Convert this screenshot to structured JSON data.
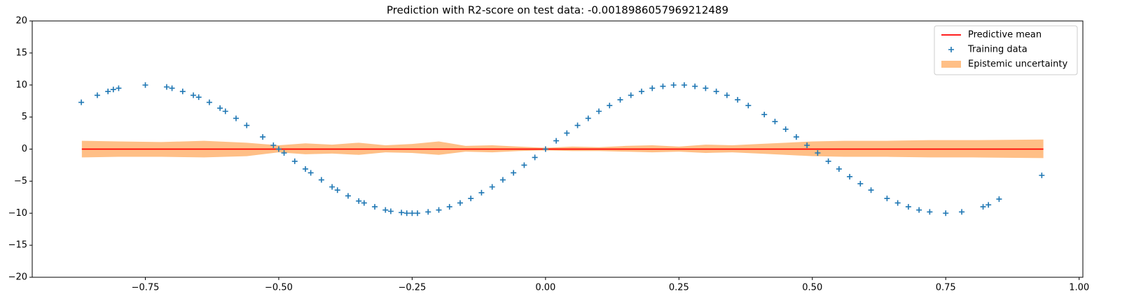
{
  "chart_data": {
    "type": "line",
    "title": "Prediction with R2-score on test data: -0.0018986057969212489",
    "xlim": [
      -0.962,
      1.007
    ],
    "ylim": [
      -20,
      20
    ],
    "xticks": [
      {
        "value": -0.75,
        "label": "−0.75"
      },
      {
        "value": -0.5,
        "label": "−0.50"
      },
      {
        "value": -0.25,
        "label": "−0.25"
      },
      {
        "value": 0,
        "label": "0.00"
      },
      {
        "value": 0.25,
        "label": "0.25"
      },
      {
        "value": 0.5,
        "label": "0.50"
      },
      {
        "value": 0.75,
        "label": "0.75"
      },
      {
        "value": 1,
        "label": "1.00"
      }
    ],
    "yticks": [
      {
        "value": -20,
        "label": "−20"
      },
      {
        "value": -15,
        "label": "−15"
      },
      {
        "value": -10,
        "label": "−10"
      },
      {
        "value": -5,
        "label": "−5"
      },
      0,
      5,
      10,
      15,
      20
    ],
    "legend": "upper right",
    "series": [
      {
        "name": "Predictive mean",
        "type": "line",
        "color": "#ff0000",
        "x": [
          -0.869,
          0.933
        ],
        "values": [
          0,
          0
        ]
      },
      {
        "name": "Training data",
        "type": "scatter",
        "color": "#1f77b4",
        "x": [
          -0.87,
          -0.84,
          -0.82,
          -0.81,
          -0.8,
          -0.75,
          -0.71,
          -0.7,
          -0.68,
          -0.66,
          -0.65,
          -0.63,
          -0.61,
          -0.6,
          -0.58,
          -0.56,
          -0.53,
          -0.51,
          -0.5,
          -0.49,
          -0.47,
          -0.45,
          -0.44,
          -0.42,
          -0.4,
          -0.39,
          -0.37,
          -0.35,
          -0.34,
          -0.32,
          -0.3,
          -0.29,
          -0.27,
          -0.26,
          -0.25,
          -0.24,
          -0.22,
          -0.2,
          -0.18,
          -0.16,
          -0.14,
          -0.12,
          -0.1,
          -0.08,
          -0.06,
          -0.04,
          -0.02,
          0,
          0.02,
          0.04,
          0.06,
          0.08,
          0.1,
          0.12,
          0.14,
          0.16,
          0.18,
          0.2,
          0.22,
          0.24,
          0.26,
          0.28,
          0.3,
          0.32,
          0.34,
          0.36,
          0.38,
          0.41,
          0.43,
          0.45,
          0.47,
          0.49,
          0.51,
          0.53,
          0.55,
          0.57,
          0.59,
          0.61,
          0.64,
          0.66,
          0.68,
          0.7,
          0.72,
          0.75,
          0.78,
          0.82,
          0.83,
          0.85,
          0.93
        ],
        "values": [
          7.3,
          8.4,
          9.0,
          9.3,
          9.5,
          10,
          9.7,
          9.5,
          9.0,
          8.4,
          8.1,
          7.3,
          6.4,
          5.9,
          4.8,
          3.7,
          1.9,
          0.6,
          0,
          -0.6,
          -1.9,
          -3.1,
          -3.7,
          -4.8,
          -5.9,
          -6.4,
          -7.3,
          -8.1,
          -8.4,
          -9.0,
          -9.5,
          -9.7,
          -9.9,
          -10,
          -10,
          -10,
          -9.8,
          -9.5,
          -9.0,
          -8.4,
          -7.7,
          -6.8,
          -5.9,
          -4.8,
          -3.7,
          -2.5,
          -1.3,
          0,
          1.3,
          2.5,
          3.7,
          4.8,
          5.9,
          6.8,
          7.7,
          8.4,
          9.0,
          9.5,
          9.8,
          10,
          10,
          9.8,
          9.5,
          9.0,
          8.4,
          7.7,
          6.8,
          5.4,
          4.3,
          3.1,
          1.9,
          0.6,
          -0.6,
          -1.9,
          -3.1,
          -4.3,
          -5.4,
          -6.4,
          -7.7,
          -8.4,
          -9.0,
          -9.5,
          -9.8,
          -10,
          -9.8,
          -9.0,
          -8.7,
          -7.8,
          -4.1
        ]
      },
      {
        "name": "Epistemic uncertainty",
        "type": "band",
        "color": "#ffbf86",
        "x": [
          -0.869,
          -0.8,
          -0.72,
          -0.64,
          -0.56,
          -0.5,
          -0.45,
          -0.4,
          -0.35,
          -0.3,
          -0.25,
          -0.2,
          -0.15,
          -0.1,
          -0.05,
          0,
          0.05,
          0.1,
          0.15,
          0.2,
          0.25,
          0.3,
          0.35,
          0.4,
          0.45,
          0.5,
          0.56,
          0.64,
          0.72,
          0.8,
          0.933
        ],
        "upper": [
          1.3,
          1.2,
          1.1,
          1.3,
          1.0,
          0.6,
          0.9,
          0.7,
          1.0,
          0.6,
          0.8,
          1.2,
          0.5,
          0.6,
          0.4,
          0.2,
          0.4,
          0.3,
          0.5,
          0.6,
          0.4,
          0.7,
          0.6,
          0.8,
          1.0,
          1.2,
          1.3,
          1.3,
          1.4,
          1.4,
          1.5
        ],
        "lower": [
          -1.3,
          -1.2,
          -1.2,
          -1.3,
          -1.1,
          -0.5,
          -0.8,
          -0.7,
          -0.9,
          -0.5,
          -0.6,
          -0.9,
          -0.4,
          -0.5,
          -0.3,
          -0.2,
          -0.3,
          -0.3,
          -0.4,
          -0.5,
          -0.4,
          -0.6,
          -0.5,
          -0.7,
          -0.9,
          -1.1,
          -1.2,
          -1.2,
          -1.3,
          -1.3,
          -1.4
        ]
      }
    ]
  }
}
